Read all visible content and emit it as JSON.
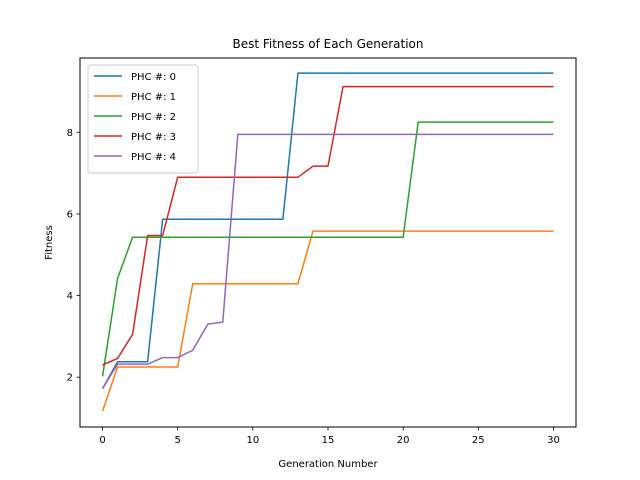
{
  "chart_data": {
    "type": "line",
    "title": "Best Fitness of Each Generation",
    "xlabel": "Generation Number",
    "ylabel": "Fitness",
    "xlim": [
      -1.5,
      31.5
    ],
    "ylim": [
      0.78,
      9.82
    ],
    "xticks": [
      0,
      5,
      10,
      15,
      20,
      25,
      30
    ],
    "yticks": [
      2,
      4,
      6,
      8
    ],
    "grid": false,
    "legend_position": "upper-left",
    "x": [
      0,
      1,
      2,
      3,
      4,
      5,
      6,
      7,
      8,
      9,
      10,
      11,
      12,
      13,
      14,
      15,
      16,
      17,
      18,
      19,
      20,
      21,
      22,
      23,
      24,
      25,
      26,
      27,
      28,
      29,
      30
    ],
    "series": [
      {
        "name": "PHC #: 0",
        "color": "#1f77b4",
        "values": [
          1.72,
          2.38,
          2.38,
          2.38,
          5.87,
          5.87,
          5.87,
          5.87,
          5.87,
          5.87,
          5.87,
          5.87,
          5.87,
          9.45,
          9.45,
          9.45,
          9.45,
          9.45,
          9.45,
          9.45,
          9.45,
          9.45,
          9.45,
          9.45,
          9.45,
          9.45,
          9.45,
          9.45,
          9.45,
          9.45,
          9.45
        ]
      },
      {
        "name": "PHC #: 1",
        "color": "#ff7f0e",
        "values": [
          1.17,
          2.25,
          2.25,
          2.25,
          2.25,
          2.25,
          4.29,
          4.29,
          4.29,
          4.29,
          4.29,
          4.29,
          4.29,
          4.29,
          5.58,
          5.58,
          5.58,
          5.58,
          5.58,
          5.58,
          5.58,
          5.58,
          5.58,
          5.58,
          5.58,
          5.58,
          5.58,
          5.58,
          5.58,
          5.58,
          5.58
        ]
      },
      {
        "name": "PHC #: 2",
        "color": "#2ca02c",
        "values": [
          2.02,
          4.42,
          5.43,
          5.43,
          5.43,
          5.43,
          5.43,
          5.43,
          5.43,
          5.43,
          5.43,
          5.43,
          5.43,
          5.43,
          5.43,
          5.43,
          5.43,
          5.43,
          5.43,
          5.43,
          5.43,
          8.25,
          8.25,
          8.25,
          8.25,
          8.25,
          8.25,
          8.25,
          8.25,
          8.25,
          8.25
        ]
      },
      {
        "name": "PHC #: 3",
        "color": "#d62728",
        "values": [
          2.3,
          2.46,
          3.05,
          5.47,
          5.47,
          6.9,
          6.9,
          6.9,
          6.9,
          6.9,
          6.9,
          6.9,
          6.9,
          6.9,
          7.17,
          7.17,
          9.12,
          9.12,
          9.12,
          9.12,
          9.12,
          9.12,
          9.12,
          9.12,
          9.12,
          9.12,
          9.12,
          9.12,
          9.12,
          9.12,
          9.12
        ]
      },
      {
        "name": "PHC #: 4",
        "color": "#9467bd",
        "values": [
          1.72,
          2.32,
          2.32,
          2.32,
          2.48,
          2.48,
          2.66,
          3.3,
          3.35,
          7.95,
          7.95,
          7.95,
          7.95,
          7.95,
          7.95,
          7.95,
          7.95,
          7.95,
          7.95,
          7.95,
          7.95,
          7.95,
          7.95,
          7.95,
          7.95,
          7.95,
          7.95,
          7.95,
          7.95,
          7.95,
          7.95
        ]
      }
    ]
  }
}
